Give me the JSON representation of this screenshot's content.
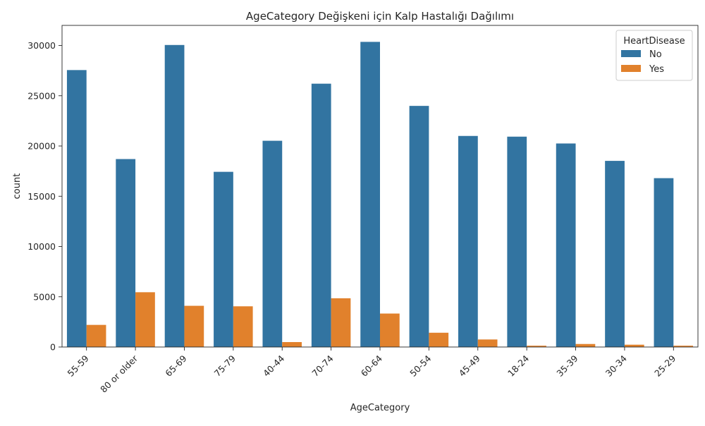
{
  "chart_data": {
    "type": "bar",
    "title": "AgeCategory Değişkeni için Kalp Hastalığı Dağılımı",
    "xlabel": "AgeCategory",
    "ylabel": "count",
    "ylim": [
      0,
      32000
    ],
    "yticks": [
      0,
      5000,
      10000,
      15000,
      20000,
      25000,
      30000
    ],
    "categories": [
      "55-59",
      "80 or older",
      "65-69",
      "75-79",
      "40-44",
      "70-74",
      "60-64",
      "50-54",
      "45-49",
      "18-24",
      "35-39",
      "30-34",
      "25-29"
    ],
    "series": [
      {
        "name": "No",
        "color": "#3274a1",
        "values": [
          27555,
          18700,
          30050,
          17430,
          20520,
          26200,
          30360,
          23990,
          21000,
          20930,
          20250,
          18520,
          16800
        ]
      },
      {
        "name": "Yes",
        "color": "#e1812c",
        "values": [
          2200,
          5450,
          4100,
          4050,
          490,
          4850,
          3330,
          1420,
          750,
          130,
          300,
          230,
          130
        ]
      }
    ],
    "legend": {
      "title": "HeartDisease",
      "position": "top-right"
    },
    "grid": false
  }
}
